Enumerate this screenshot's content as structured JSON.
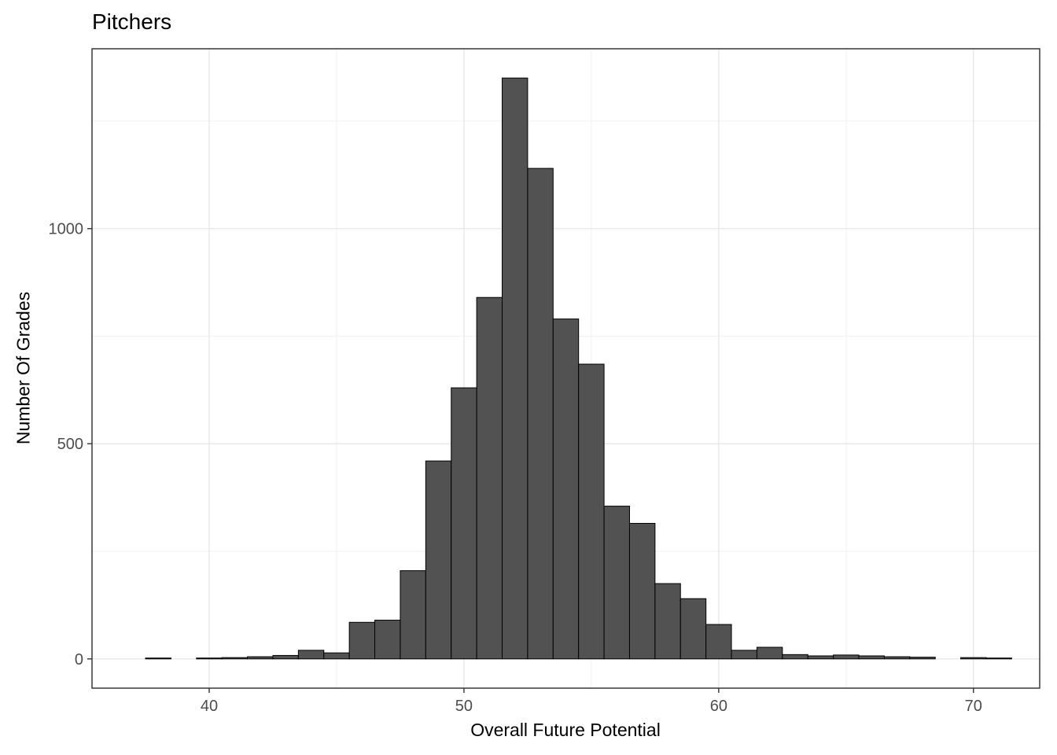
{
  "chart_data": {
    "type": "bar",
    "subtype": "histogram",
    "title": "Pitchers",
    "xlabel": "Overall Future Potential",
    "ylabel": "Number Of Grades",
    "binwidth": 1,
    "bin_centers": [
      38,
      39,
      40,
      41,
      42,
      43,
      44,
      45,
      46,
      47,
      48,
      49,
      50,
      51,
      52,
      53,
      54,
      55,
      56,
      57,
      58,
      59,
      60,
      61,
      62,
      63,
      64,
      65,
      66,
      67,
      68,
      69,
      70,
      71
    ],
    "counts": [
      2,
      0,
      2,
      3,
      5,
      8,
      20,
      14,
      85,
      90,
      205,
      460,
      630,
      840,
      1350,
      1140,
      790,
      685,
      355,
      315,
      175,
      140,
      80,
      20,
      27,
      10,
      7,
      9,
      7,
      5,
      4,
      0,
      3,
      2
    ],
    "x_ticks": [
      40,
      50,
      60,
      70
    ],
    "x_minor_ticks": [
      45,
      55,
      65
    ],
    "y_ticks": [
      0,
      500,
      1000
    ],
    "y_minor_ticks": [
      250,
      750,
      1250
    ],
    "xlim": [
      35.4,
      72.6
    ],
    "ylim": [
      -68,
      1418
    ],
    "grid": true,
    "legend": "none",
    "colors": {
      "bar_fill": "#525252",
      "bar_stroke": "#000000",
      "grid_major": "#e4e4e4",
      "grid_minor": "#f1f1f1",
      "panel_border": "#2b2b2b",
      "panel_bg": "#ffffff",
      "tick_mark": "#333333",
      "tick_label": "#4d4d4d",
      "axis_title": "#000000"
    }
  }
}
